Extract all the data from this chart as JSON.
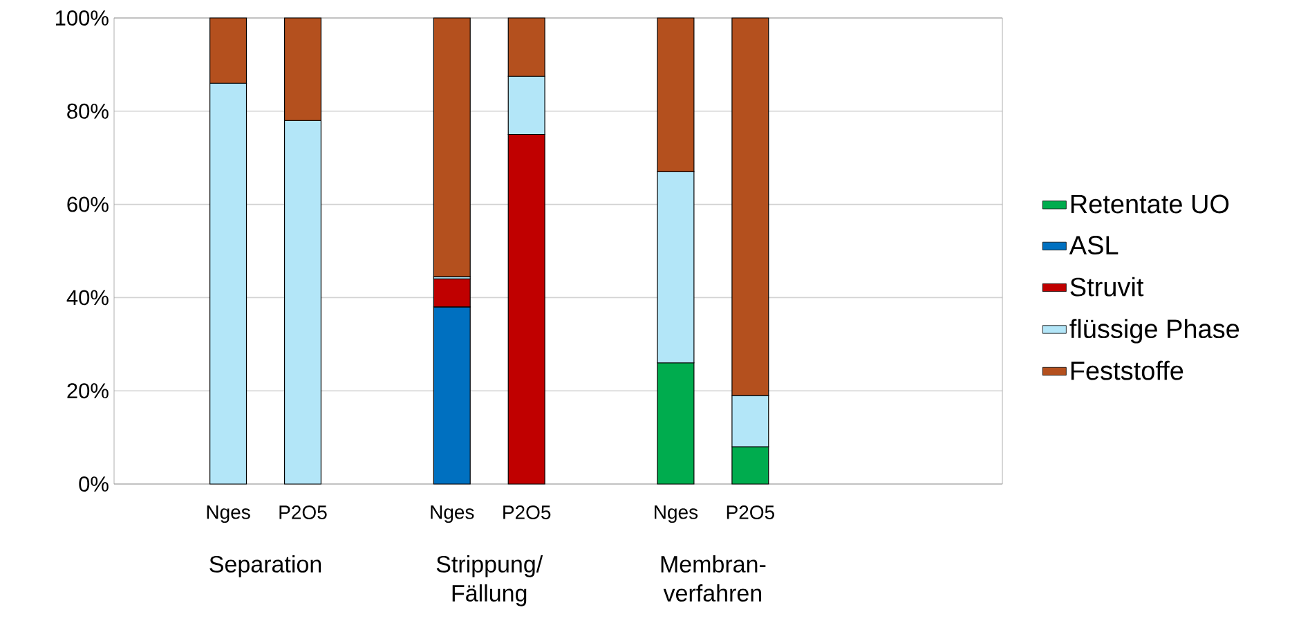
{
  "chart_data": {
    "type": "bar",
    "stacked": true,
    "categories": [
      "Nges",
      "P2O5",
      null,
      "Nges",
      "P2O5",
      null,
      "Nges",
      "P2O5"
    ],
    "series": [
      {
        "name": "Retentate UO",
        "color": "#00ac4e",
        "values": [
          null,
          null,
          null,
          null,
          null,
          null,
          26,
          8
        ]
      },
      {
        "name": "ASL",
        "color": "#0070c0",
        "values": [
          null,
          null,
          null,
          38,
          null,
          null,
          null,
          null
        ]
      },
      {
        "name": "Struvit",
        "color": "#c00000",
        "values": [
          null,
          null,
          null,
          6,
          75,
          null,
          null,
          null
        ]
      },
      {
        "name": "flüssige Phase",
        "color": "#b3e6f8",
        "values": [
          86,
          78,
          null,
          0.5,
          12.5,
          null,
          41,
          11
        ]
      },
      {
        "name": "Feststoffe",
        "color": "#b4501e",
        "values": [
          14,
          22,
          null,
          55.5,
          12.5,
          null,
          33,
          81
        ]
      }
    ],
    "ylim": [
      0,
      100
    ],
    "yticks": [
      {
        "value": 0,
        "label": "0%"
      },
      {
        "value": 20,
        "label": "20%"
      },
      {
        "value": 40,
        "label": "40%"
      },
      {
        "value": 60,
        "label": "60%"
      },
      {
        "value": 80,
        "label": "80%"
      },
      {
        "value": 100,
        "label": "100%"
      }
    ],
    "grid": "y",
    "legend": "right",
    "annotations": [
      "Separation",
      "Strippung/ Fällung",
      "Membran-verfahren"
    ]
  }
}
